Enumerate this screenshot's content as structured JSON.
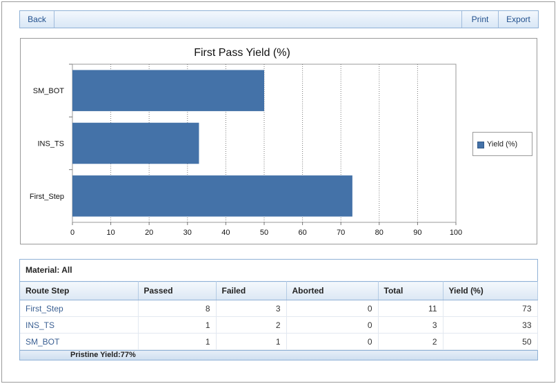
{
  "toolbar": {
    "back_label": "Back",
    "print_label": "Print",
    "export_label": "Export"
  },
  "chart_data": {
    "type": "bar",
    "orientation": "horizontal",
    "title": "First Pass Yield (%)",
    "categories": [
      "SM_BOT",
      "INS_TS",
      "First_Step"
    ],
    "series": [
      {
        "name": "Yield (%)",
        "values": [
          50,
          33,
          73
        ],
        "color": "#4472a8"
      }
    ],
    "xlim": [
      0,
      100
    ],
    "xticks": [
      0,
      10,
      20,
      30,
      40,
      50,
      60,
      70,
      80,
      90,
      100
    ],
    "grid": "vertical-dotted",
    "legend": "right"
  },
  "grid": {
    "material_label": "Material: All",
    "columns": [
      "Route Step",
      "Passed",
      "Failed",
      "Aborted",
      "Total",
      "Yield (%)"
    ],
    "rows": [
      [
        "First_Step",
        "8",
        "3",
        "0",
        "11",
        "73"
      ],
      [
        "INS_TS",
        "1",
        "2",
        "0",
        "3",
        "33"
      ],
      [
        "SM_BOT",
        "1",
        "1",
        "0",
        "2",
        "50"
      ]
    ],
    "footer": "Pristine Yield:77%"
  }
}
